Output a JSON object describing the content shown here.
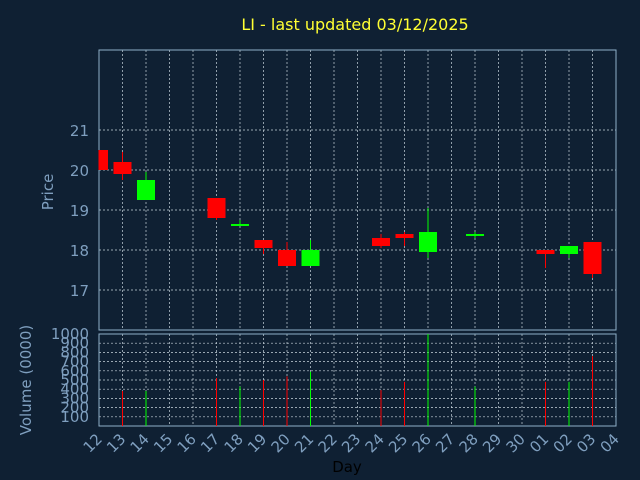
{
  "chart_data": {
    "type": "candlestick",
    "title": "LI - last updated 03/12/2025",
    "ylabel_price": "Price",
    "ylabel_volume": "Volume (0000)",
    "xlabel": "Day",
    "price_ylim": [
      16,
      23
    ],
    "price_ticks": [
      "17",
      "18",
      "19",
      "20",
      "21"
    ],
    "volume_ylim": [
      0,
      1000
    ],
    "volume_ticks": [
      "100",
      "200",
      "300",
      "400",
      "500",
      "600",
      "700",
      "800",
      "900",
      "1000"
    ],
    "x_tick_labels": [
      "12",
      "13",
      "14",
      "15",
      "16",
      "17",
      "18",
      "19",
      "20",
      "21",
      "22",
      "23",
      "24",
      "25",
      "26",
      "27",
      "28",
      "29",
      "30",
      "01",
      "02",
      "03",
      "04"
    ],
    "up_color": "#00ff00",
    "down_color": "#ff0000",
    "candles": [
      {
        "day": "12",
        "open": 20.5,
        "high": 20.5,
        "low": 20.0,
        "close": 20.0,
        "volume": 0
      },
      {
        "day": "13",
        "open": 20.2,
        "high": 20.45,
        "low": 19.75,
        "close": 19.9,
        "volume": 380
      },
      {
        "day": "14",
        "open": 19.25,
        "high": 19.95,
        "low": 19.25,
        "close": 19.75,
        "volume": 380
      },
      {
        "day": "17",
        "open": 19.3,
        "high": 19.3,
        "low": 18.75,
        "close": 18.8,
        "volume": 520
      },
      {
        "day": "18",
        "open": 18.65,
        "high": 18.75,
        "low": 18.65,
        "close": 18.65,
        "volume": 430
      },
      {
        "day": "19",
        "open": 18.25,
        "high": 18.25,
        "low": 17.9,
        "close": 18.05,
        "volume": 500
      },
      {
        "day": "20",
        "open": 18.0,
        "high": 18.2,
        "low": 17.6,
        "close": 17.6,
        "volume": 540
      },
      {
        "day": "21",
        "open": 17.6,
        "high": 18.25,
        "low": 17.6,
        "close": 18.0,
        "volume": 590
      },
      {
        "day": "24",
        "open": 18.3,
        "high": 18.4,
        "low": 18.05,
        "close": 18.1,
        "volume": 390
      },
      {
        "day": "25",
        "open": 18.4,
        "high": 18.45,
        "low": 18.1,
        "close": 18.3,
        "volume": 480
      },
      {
        "day": "26",
        "open": 17.95,
        "high": 19.05,
        "low": 17.8,
        "close": 18.45,
        "volume": 1000
      },
      {
        "day": "28",
        "open": 18.35,
        "high": 18.45,
        "low": 18.3,
        "close": 18.4,
        "volume": 430
      },
      {
        "day": "01",
        "open": 18.0,
        "high": 18.0,
        "low": 17.55,
        "close": 17.9,
        "volume": 480
      },
      {
        "day": "02",
        "open": 17.9,
        "high": 18.1,
        "low": 17.8,
        "close": 18.1,
        "volume": 480
      },
      {
        "day": "03",
        "open": 18.2,
        "high": 18.2,
        "low": 17.3,
        "close": 17.4,
        "volume": 760
      }
    ]
  }
}
